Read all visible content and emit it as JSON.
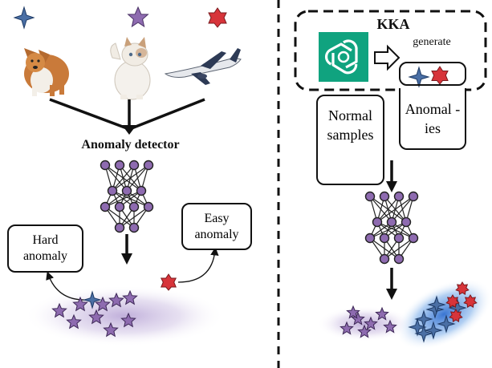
{
  "title_left": "Anomaly detector",
  "hard_anomaly": "Hard anomaly",
  "easy_anomaly": "Easy anomaly",
  "kka_title": "KKA",
  "generate_label": "generate",
  "normal_samples": "Normal samples",
  "anomalies": "Anomal -ies",
  "colors": {
    "normal_star": "#8e6bb0",
    "anomaly_star": "#4a6fa5",
    "red_shape": "#d7343a",
    "chatgpt_bg": "#10a37f",
    "normal_cloud": "#c7b9dc",
    "anomaly_cloud": "#3f84d8"
  },
  "icons": [
    "dog-image",
    "cat-image",
    "airplane-image",
    "chatgpt-logo-icon",
    "arrow-right-icon",
    "neural-network-icon"
  ]
}
